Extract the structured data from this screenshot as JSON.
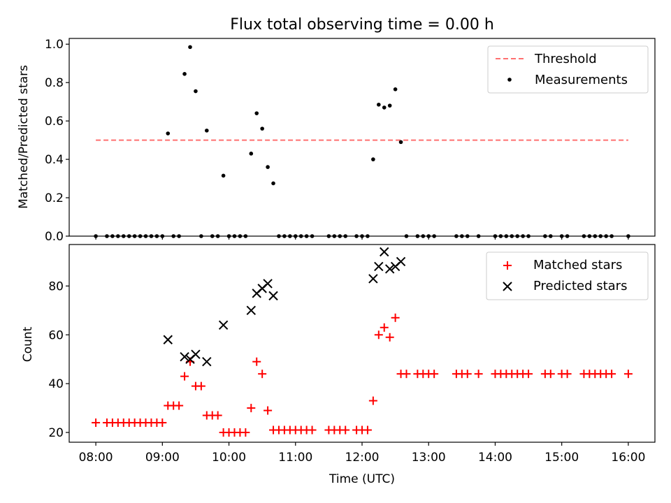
{
  "chart_data": [
    {
      "type": "scatter",
      "title": "Flux total observing time = 0.00 h",
      "ylabel": "Matched/Predicted stars",
      "xlabel": "",
      "xlim": [
        "07:36",
        "16:24"
      ],
      "ylim": [
        0,
        1.03
      ],
      "yticks": [
        "0.0",
        "0.2",
        "0.4",
        "0.6",
        "0.8",
        "1.0"
      ],
      "legend_position": "top-right",
      "threshold": {
        "name": "Threshold",
        "y": 0.5,
        "x": [
          "08:00",
          "16:00"
        ],
        "color": "#ff7070",
        "style": "dashed"
      },
      "series": [
        {
          "name": "Measurements",
          "marker": "dot",
          "color": "#000000",
          "x": [
            "08:00",
            "08:10",
            "08:15",
            "08:20",
            "08:25",
            "08:30",
            "08:35",
            "08:40",
            "08:45",
            "08:50",
            "08:55",
            "09:00",
            "09:05",
            "09:10",
            "09:15",
            "09:20",
            "09:25",
            "09:30",
            "09:35",
            "09:40",
            "09:45",
            "09:50",
            "09:55",
            "10:00",
            "10:05",
            "10:10",
            "10:15",
            "10:20",
            "10:25",
            "10:30",
            "10:35",
            "10:40",
            "10:45",
            "10:50",
            "10:55",
            "11:00",
            "11:05",
            "11:10",
            "11:15",
            "11:30",
            "11:35",
            "11:40",
            "11:45",
            "11:55",
            "12:00",
            "12:05",
            "12:10",
            "12:15",
            "12:20",
            "12:25",
            "12:30",
            "12:35",
            "12:40",
            "12:50",
            "12:55",
            "13:00",
            "13:05",
            "13:25",
            "13:30",
            "13:35",
            "13:45",
            "14:00",
            "14:05",
            "14:10",
            "14:15",
            "14:20",
            "14:25",
            "14:30",
            "14:45",
            "14:50",
            "15:00",
            "15:05",
            "15:20",
            "15:25",
            "15:30",
            "15:35",
            "15:40",
            "15:45",
            "16:00"
          ],
          "y": [
            0.0,
            0.0,
            0.0,
            0.0,
            0.0,
            0.0,
            0.0,
            0.0,
            0.0,
            0.0,
            0.0,
            0.0,
            0.535,
            0.0,
            0.0,
            0.845,
            0.985,
            0.755,
            0.0,
            0.55,
            0.0,
            0.0,
            0.315,
            0.0,
            0.0,
            0.0,
            0.0,
            0.43,
            0.64,
            0.56,
            0.36,
            0.275,
            0.0,
            0.0,
            0.0,
            0.0,
            0.0,
            0.0,
            0.0,
            0.0,
            0.0,
            0.0,
            0.0,
            0.0,
            0.0,
            0.0,
            0.4,
            0.685,
            0.67,
            0.68,
            0.765,
            0.49,
            0.0,
            0.0,
            0.0,
            0.0,
            0.0,
            0.0,
            0.0,
            0.0,
            0.0,
            0.0,
            0.0,
            0.0,
            0.0,
            0.0,
            0.0,
            0.0,
            0.0,
            0.0,
            0.0,
            0.0,
            0.0,
            0.0,
            0.0,
            0.0,
            0.0,
            0.0,
            0.0
          ]
        }
      ]
    },
    {
      "type": "scatter",
      "title": "",
      "ylabel": "Count",
      "xlabel": "Time (UTC)",
      "xlim": [
        "07:36",
        "16:24"
      ],
      "ylim": [
        16,
        97
      ],
      "yticks": [
        "20",
        "40",
        "60",
        "80"
      ],
      "xticks": [
        "08:00",
        "09:00",
        "10:00",
        "11:00",
        "12:00",
        "13:00",
        "14:00",
        "15:00",
        "16:00"
      ],
      "legend_position": "top-right",
      "series": [
        {
          "name": "Matched stars",
          "marker": "plus",
          "color": "#ff0000",
          "x": [
            "08:00",
            "08:10",
            "08:15",
            "08:20",
            "08:25",
            "08:30",
            "08:35",
            "08:40",
            "08:45",
            "08:50",
            "08:55",
            "09:00",
            "09:05",
            "09:10",
            "09:15",
            "09:20",
            "09:25",
            "09:30",
            "09:35",
            "09:40",
            "09:45",
            "09:50",
            "09:55",
            "10:00",
            "10:05",
            "10:10",
            "10:15",
            "10:20",
            "10:25",
            "10:30",
            "10:35",
            "10:40",
            "10:45",
            "10:50",
            "10:55",
            "11:00",
            "11:05",
            "11:10",
            "11:15",
            "11:30",
            "11:35",
            "11:40",
            "11:45",
            "11:55",
            "12:00",
            "12:05",
            "12:10",
            "12:15",
            "12:20",
            "12:25",
            "12:30",
            "12:35",
            "12:40",
            "12:50",
            "12:55",
            "13:00",
            "13:05",
            "13:25",
            "13:30",
            "13:35",
            "13:45",
            "14:00",
            "14:05",
            "14:10",
            "14:15",
            "14:20",
            "14:25",
            "14:30",
            "14:45",
            "14:50",
            "15:00",
            "15:05",
            "15:20",
            "15:25",
            "15:30",
            "15:35",
            "15:40",
            "15:45",
            "16:00"
          ],
          "y": [
            24,
            24,
            24,
            24,
            24,
            24,
            24,
            24,
            24,
            24,
            24,
            24,
            31,
            31,
            31,
            43,
            49,
            39,
            39,
            27,
            27,
            27,
            20,
            20,
            20,
            20,
            20,
            30,
            49,
            44,
            29,
            21,
            21,
            21,
            21,
            21,
            21,
            21,
            21,
            21,
            21,
            21,
            21,
            21,
            21,
            21,
            33,
            60,
            63,
            59,
            67,
            44,
            44,
            44,
            44,
            44,
            44,
            44,
            44,
            44,
            44,
            44,
            44,
            44,
            44,
            44,
            44,
            44,
            44,
            44,
            44,
            44,
            44,
            44,
            44,
            44,
            44,
            44,
            44
          ]
        },
        {
          "name": "Predicted stars",
          "marker": "x",
          "color": "#000000",
          "x": [
            "09:05",
            "09:20",
            "09:25",
            "09:30",
            "09:40",
            "09:55",
            "10:20",
            "10:25",
            "10:30",
            "10:35",
            "10:40",
            "12:10",
            "12:15",
            "12:20",
            "12:25",
            "12:30",
            "12:35"
          ],
          "y": [
            58,
            51,
            50,
            52,
            49,
            64,
            70,
            77,
            79,
            81,
            76,
            83,
            88,
            94,
            87,
            88,
            90
          ]
        }
      ]
    }
  ]
}
